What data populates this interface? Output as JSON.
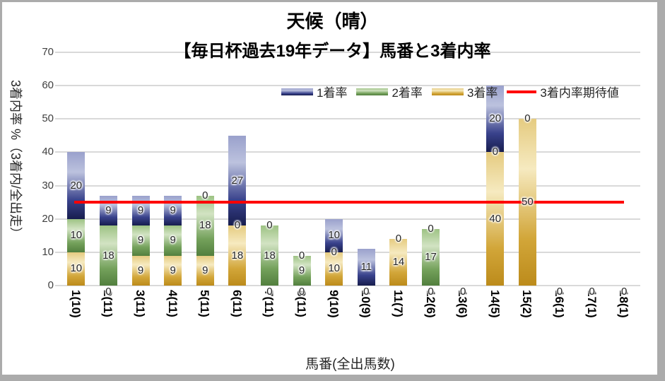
{
  "window": {
    "frame_color": "#ababab",
    "background": "#ffffff"
  },
  "title": {
    "line1": "天候（晴）",
    "line2": "【毎日杯過去19年データ】馬番と3着内率"
  },
  "axes": {
    "y_title": "3着内率 %（3着内/全出走）",
    "x_title": "馬番(全出馬数)"
  },
  "legend": [
    {
      "label": "1着率",
      "type": "swatch",
      "series": "1着率",
      "key": "win-rate"
    },
    {
      "label": "2着率",
      "type": "swatch",
      "series": "2着率",
      "key": "second-rate"
    },
    {
      "label": "3着率",
      "type": "swatch",
      "series": "3着率",
      "key": "third-rate"
    },
    {
      "label": "3着内率期待値",
      "type": "line",
      "color": "#ff0000",
      "key": "expected-top3-rate"
    }
  ],
  "colors": {
    "gridline": "#d9d9d9",
    "reference_line": "#ff0000",
    "axis_text": "#404040",
    "data_label_text": "#262626",
    "series_gradients": {
      "1着率": [
        "#9aa1cc",
        "#bcc2de",
        "#39428c",
        "#171d4e"
      ],
      "2着率": [
        "#9dc283",
        "#d2e3c3",
        "#74a15b",
        "#527f3e"
      ],
      "3着率": [
        "#e5cb80",
        "#f6eac0",
        "#d2a639",
        "#bc8b1b"
      ]
    }
  },
  "chart_data": {
    "type": "bar",
    "stacked": true,
    "title": "天候（晴） 【毎日杯過去19年データ】馬番と3着内率",
    "xlabel": "馬番(全出馬数)",
    "ylabel": "3着内率 %（3着内/全出走）",
    "ylim": [
      0,
      70
    ],
    "yticks": [
      0,
      10,
      20,
      30,
      40,
      50,
      60,
      70
    ],
    "grid": true,
    "legend_position": "top-right",
    "categories": [
      "1(10)",
      "2(11)",
      "3(11)",
      "4(11)",
      "5(11)",
      "6(11)",
      "7(11)",
      "8(11)",
      "9(10)",
      "10(9)",
      "11(7)",
      "12(6)",
      "13(6)",
      "14(5)",
      "15(2)",
      "16(1)",
      "17(1)",
      "18(1)"
    ],
    "series": [
      {
        "name": "1着率",
        "key": "win-rate",
        "values": [
          20,
          9,
          9,
          9,
          0,
          27,
          0,
          0,
          10,
          11,
          0,
          0,
          0,
          20,
          0,
          0,
          0,
          0
        ]
      },
      {
        "name": "2着率",
        "key": "second-rate",
        "values": [
          10,
          18,
          9,
          9,
          18,
          0,
          18,
          9,
          0,
          0,
          0,
          17,
          0,
          0,
          0,
          0,
          0,
          0
        ]
      },
      {
        "name": "3着率",
        "key": "third-rate",
        "values": [
          10,
          0,
          9,
          9,
          9,
          18,
          0,
          0,
          10,
          0,
          14,
          0,
          0,
          40,
          50,
          0,
          0,
          0
        ]
      }
    ],
    "stack_order_bottom_to_top": [
      "3着率",
      "2着率",
      "1着率"
    ],
    "reference_line": {
      "name": "3着内率期待値",
      "value": 25,
      "color": "#ff0000"
    }
  }
}
